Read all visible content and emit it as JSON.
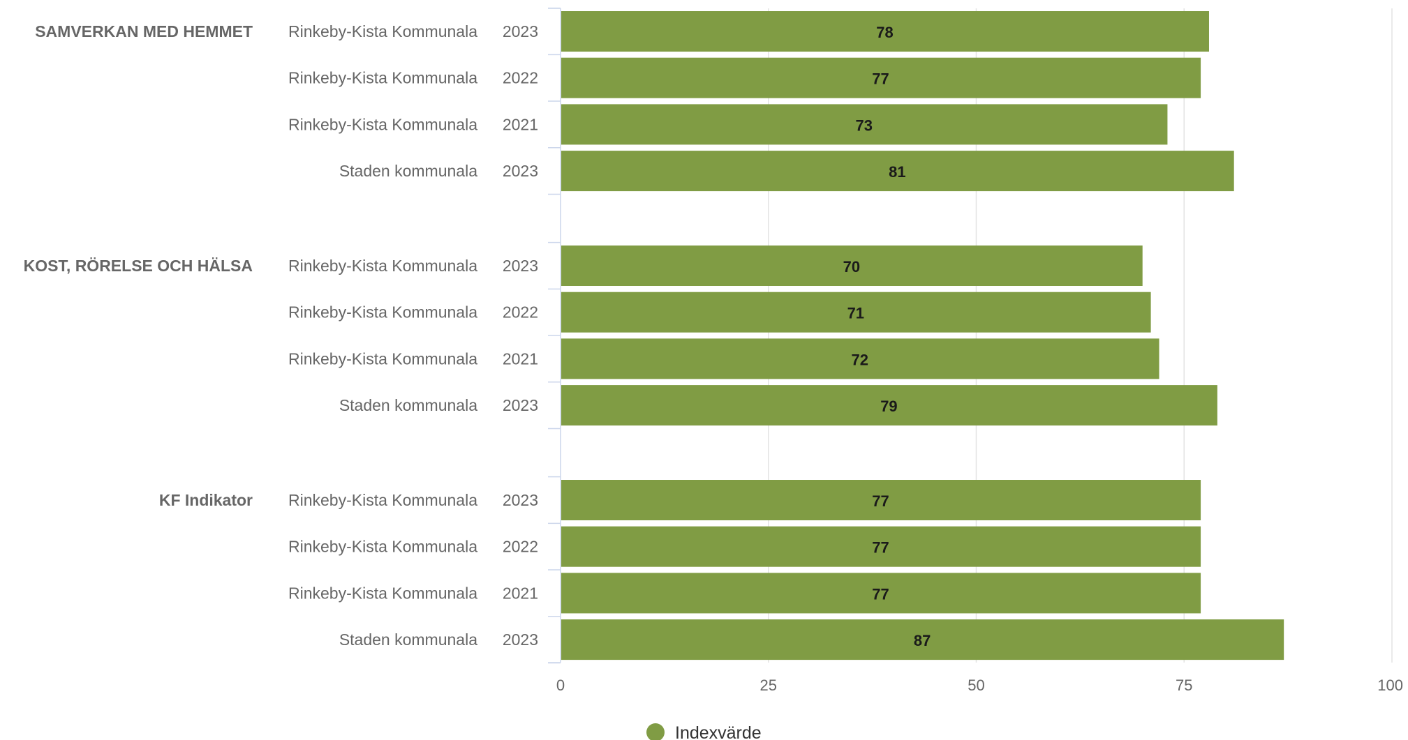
{
  "chart_data": {
    "type": "bar",
    "orientation": "horizontal",
    "xlim": [
      0,
      100
    ],
    "ticks": [
      "0",
      "25",
      "50",
      "75",
      "100"
    ],
    "tick_values": [
      0,
      25,
      50,
      75,
      100
    ],
    "grid": true,
    "legend_position": "bottom",
    "bar_color": "#809c44",
    "series": [
      {
        "name": "Indexvärde"
      }
    ],
    "groups": [
      {
        "name": "SAMVERKAN MED HEMMET",
        "rows": [
          {
            "category": "Rinkeby-Kista Kommunala",
            "year": "2023",
            "value": 78,
            "label": "78"
          },
          {
            "category": "Rinkeby-Kista Kommunala",
            "year": "2022",
            "value": 77,
            "label": "77"
          },
          {
            "category": "Rinkeby-Kista Kommunala",
            "year": "2021",
            "value": 73,
            "label": "73"
          },
          {
            "category": "Staden kommunala",
            "year": "2023",
            "value": 81,
            "label": "81"
          }
        ]
      },
      {
        "name": "KOST, RÖRELSE OCH HÄLSA",
        "rows": [
          {
            "category": "Rinkeby-Kista Kommunala",
            "year": "2023",
            "value": 70,
            "label": "70"
          },
          {
            "category": "Rinkeby-Kista Kommunala",
            "year": "2022",
            "value": 71,
            "label": "71"
          },
          {
            "category": "Rinkeby-Kista Kommunala",
            "year": "2021",
            "value": 72,
            "label": "72"
          },
          {
            "category": "Staden kommunala",
            "year": "2023",
            "value": 79,
            "label": "79"
          }
        ]
      },
      {
        "name": "KF Indikator",
        "rows": [
          {
            "category": "Rinkeby-Kista Kommunala",
            "year": "2023",
            "value": 77,
            "label": "77"
          },
          {
            "category": "Rinkeby-Kista Kommunala",
            "year": "2022",
            "value": 77,
            "label": "77"
          },
          {
            "category": "Rinkeby-Kista Kommunala",
            "year": "2021",
            "value": 77,
            "label": "77"
          },
          {
            "category": "Staden kommunala",
            "year": "2023",
            "value": 87,
            "label": "87"
          }
        ]
      }
    ]
  }
}
